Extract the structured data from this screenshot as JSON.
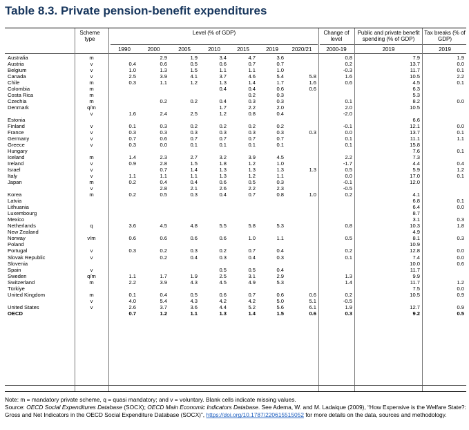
{
  "title": "Table 8.3. Private pension-benefit expenditures",
  "header": {
    "scheme_type": "Scheme type",
    "level": "Level (% of GDP)",
    "change": "Change of level",
    "change_period": "2000-19",
    "public_private": "Public and private benefit spending (% of GDP)",
    "public_private_year": "2019",
    "tax_breaks": "Tax breaks (% of GDP)",
    "tax_breaks_year": "2019",
    "years": [
      "1990",
      "2000",
      "2005",
      "2010",
      "2015",
      "2019",
      "2020/21"
    ]
  },
  "rows": [
    [
      "Australia",
      "m",
      "",
      "2.9",
      "1.9",
      "3.4",
      "4.7",
      "3.6",
      "",
      "0.8",
      "7.9",
      "1.9"
    ],
    [
      "Austria",
      "v",
      "0.4",
      "0.6",
      "0.5",
      "0.6",
      "0.7",
      "0.7",
      "",
      "0.2",
      "13.7",
      "0.0"
    ],
    [
      "Belgium",
      "v",
      "1.0",
      "1.3",
      "1.5",
      "1.1",
      "1.1",
      "1.0",
      "",
      "-0.3",
      "11.7",
      "0.1"
    ],
    [
      "Canada",
      "v",
      "2.5",
      "3.9",
      "4.1",
      "3.7",
      "4.6",
      "5.4",
      "5.8",
      "1.6",
      "10.5",
      "2.2"
    ],
    [
      "Chile",
      "m",
      "0.3",
      "1.1",
      "1.2",
      "1.3",
      "1.4",
      "1.7",
      "1.6",
      "0.6",
      "4.5",
      "0.1"
    ],
    [
      "Colombia",
      "m",
      "",
      "",
      "",
      "0.4",
      "0.4",
      "0.6",
      "0.6",
      "",
      "6.3",
      ""
    ],
    [
      "Costa Rica",
      "m",
      "",
      "",
      "",
      "",
      "0.2",
      "0.3",
      "",
      "",
      "5.3",
      ""
    ],
    [
      "Czechia",
      "m",
      "",
      "0.2",
      "0.2",
      "0.4",
      "0.3",
      "0.3",
      "",
      "0.1",
      "8.2",
      "0.0"
    ],
    [
      "Denmark",
      "q/m",
      "",
      "",
      "",
      "1.7",
      "2.2",
      "2.0",
      "",
      "2.0",
      "10.5",
      ""
    ],
    [
      "",
      "v",
      "1.6",
      "2.4",
      "2.5",
      "1.2",
      "0.8",
      "0.4",
      "",
      "-2.0",
      "",
      ""
    ],
    [
      "Estonia",
      "",
      "",
      "",
      "",
      "",
      "",
      "",
      "",
      "",
      "6.6",
      ""
    ],
    [
      "Finland",
      "v",
      "0.1",
      "0.3",
      "0.2",
      "0.2",
      "0.2",
      "0.2",
      "",
      "-0.1",
      "12.1",
      "0.0"
    ],
    [
      "France",
      "v",
      "0.3",
      "0.3",
      "0.3",
      "0.3",
      "0.3",
      "0.3",
      "0.3",
      "0.0",
      "13.7",
      "0.1"
    ],
    [
      "Germany",
      "v",
      "0.7",
      "0.6",
      "0.7",
      "0.7",
      "0.7",
      "0.7",
      "",
      "0.1",
      "11.1",
      "1.1"
    ],
    [
      "Greece",
      "v",
      "0.3",
      "0.0",
      "0.1",
      "0.1",
      "0.1",
      "0.1",
      "",
      "0.1",
      "15.8",
      ""
    ],
    [
      "Hungary",
      "",
      "",
      "",
      "",
      "",
      "",
      "",
      "",
      "",
      "7.6",
      "0.1"
    ],
    [
      "Iceland",
      "m",
      "1.4",
      "2.3",
      "2.7",
      "3.2",
      "3.9",
      "4.5",
      "",
      "2.2",
      "7.3",
      ""
    ],
    [
      "Ireland",
      "v",
      "0.9",
      "2.8",
      "1.5",
      "1.8",
      "1.2",
      "1.0",
      "",
      "-1.7",
      "4.4",
      "0.4"
    ],
    [
      "Israel",
      "v",
      "",
      "0.7",
      "1.4",
      "1.3",
      "1.3",
      "1.3",
      "1.3",
      "0.5",
      "5.9",
      "1.2"
    ],
    [
      "Italy",
      "v",
      "1.1",
      "1.1",
      "1.1",
      "1.3",
      "1.2",
      "1.1",
      "",
      "0.0",
      "17.0",
      "0.1"
    ],
    [
      "Japan",
      "m",
      "0.2",
      "0.4",
      "0.4",
      "0.6",
      "0.5",
      "0.3",
      "",
      "-0.1",
      "12.0",
      ""
    ],
    [
      "",
      "v",
      "",
      "2.8",
      "2.1",
      "2.6",
      "2.2",
      "2.3",
      "",
      "-0.5",
      "",
      ""
    ],
    [
      "Korea",
      "m",
      "0.2",
      "0.5",
      "0.3",
      "0.4",
      "0.7",
      "0.8",
      "1.0",
      "0.2",
      "4.1",
      ""
    ],
    [
      "Latvia",
      "",
      "",
      "",
      "",
      "",
      "",
      "",
      "",
      "",
      "6.8",
      "0.1"
    ],
    [
      "Lithuania",
      "",
      "",
      "",
      "",
      "",
      "",
      "",
      "",
      "",
      "6.4",
      "0.0"
    ],
    [
      "Luxembourg",
      "",
      "",
      "",
      "",
      "",
      "",
      "",
      "",
      "",
      "8.7",
      ""
    ],
    [
      "Mexico",
      "",
      "",
      "",
      "",
      "",
      "",
      "",
      "",
      "",
      "3.1",
      "0.3"
    ],
    [
      "Netherlands",
      "q",
      "3.6",
      "4.5",
      "4.8",
      "5.5",
      "5.8",
      "5.3",
      "",
      "0.8",
      "10.3",
      "1.8"
    ],
    [
      "New Zealand",
      "",
      "",
      "",
      "",
      "",
      "",
      "",
      "",
      "",
      "4.9",
      ""
    ],
    [
      "Norway",
      "v/m",
      "0.6",
      "0.6",
      "0.6",
      "0.6",
      "1.0",
      "1.1",
      "",
      "0.5",
      "8.1",
      "0.3"
    ],
    [
      "Poland",
      "",
      "",
      "",
      "",
      "",
      "",
      "",
      "",
      "",
      "10.9",
      ""
    ],
    [
      "Portugal",
      "v",
      "0.3",
      "0.2",
      "0.3",
      "0.2",
      "0.7",
      "0.4",
      "",
      "0.2",
      "12.8",
      "0.0"
    ],
    [
      "Slovak Republic",
      "v",
      "",
      "0.2",
      "0.4",
      "0.3",
      "0.4",
      "0.3",
      "",
      "0.1",
      "7.4",
      "0.0"
    ],
    [
      "Slovenia",
      "",
      "",
      "",
      "",
      "",
      "",
      "",
      "",
      "",
      "10.0",
      "0.6"
    ],
    [
      "Spain",
      "v",
      "",
      "",
      "",
      "0.5",
      "0.5",
      "0.4",
      "",
      "",
      "11.7",
      ""
    ],
    [
      "Sweden",
      "q/m",
      "1.1",
      "1.7",
      "1.9",
      "2.5",
      "3.1",
      "2.9",
      "",
      "1.3",
      "9.9",
      ""
    ],
    [
      "Switzerland",
      "m",
      "2.2",
      "3.9",
      "4.3",
      "4.5",
      "4.9",
      "5.3",
      "",
      "1.4",
      "11.7",
      "1.2"
    ],
    [
      "Türkiye",
      "",
      "",
      "",
      "",
      "",
      "",
      "",
      "",
      "",
      "7.5",
      "0.0"
    ],
    [
      "United Kingdom",
      "m",
      "0.1",
      "0.4",
      "0.5",
      "0.6",
      "0.7",
      "0.6",
      "0.6",
      "0.2",
      "10.5",
      "0.9"
    ],
    [
      "",
      "v",
      "4.0",
      "5.4",
      "4.3",
      "4.2",
      "4.2",
      "5.0",
      "5.1",
      "-0.5",
      "",
      ""
    ],
    [
      "United States",
      "v",
      "2.6",
      "3.7",
      "3.6",
      "4.4",
      "5.2",
      "5.6",
      "6.1",
      "1.9",
      "12.7",
      "0.9"
    ],
    [
      "OECD",
      "",
      "0.7",
      "1.2",
      "1.1",
      "1.3",
      "1.4",
      "1.5",
      "0.6",
      "0.3",
      "9.2",
      "0.5"
    ]
  ],
  "notes": {
    "line1": "Note: m = mandatory private scheme, q = quasi mandatory; and v = voluntary. Blank cells indicate missing values.",
    "src_prefix": "Source: ",
    "src_italic1": "OECD Social Expenditures Database",
    "src_mid1": " (SOCX); ",
    "src_italic2": "OECD Main Economic Indicators Database",
    "src_mid2": ". See Adema, W. and M. Ladaique (2009), “How Expensive is the Welfare State?: Gross and Net Indicators in the OECD Social Expenditure Database (SOCX)”, ",
    "link": "https://doi.org/10.1787/220615515052",
    "src_end": " for more details on the data, sources and methodology."
  }
}
